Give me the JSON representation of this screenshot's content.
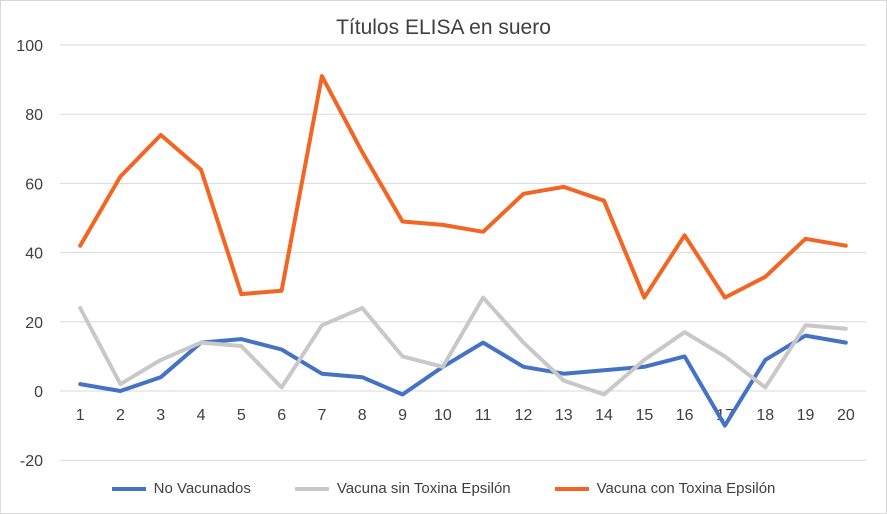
{
  "chart_data": {
    "type": "line",
    "title": "Títulos ELISA en suero",
    "xlabel": "",
    "ylabel": "",
    "categories": [
      "1",
      "2",
      "3",
      "4",
      "5",
      "6",
      "7",
      "8",
      "9",
      "10",
      "11",
      "12",
      "13",
      "14",
      "15",
      "16",
      "17",
      "18",
      "19",
      "20"
    ],
    "ylim": [
      -20,
      100
    ],
    "yticks": [
      "-20",
      "0",
      "20",
      "40",
      "60",
      "80",
      "100"
    ],
    "grid": true,
    "legend_position": "bottom",
    "series": [
      {
        "name": "No Vacunados",
        "color": "#4472c4",
        "values": [
          2,
          0,
          4,
          14,
          15,
          12,
          5,
          4,
          -1,
          7,
          14,
          7,
          5,
          6,
          7,
          10,
          -10,
          9,
          16,
          14
        ]
      },
      {
        "name": "Vacuna sin Toxina Epsilón",
        "color": "#c8c8c8",
        "values": [
          24,
          2,
          9,
          14,
          13,
          1,
          19,
          24,
          10,
          7,
          27,
          14,
          3,
          -1,
          9,
          17,
          10,
          1,
          19,
          18
        ]
      },
      {
        "name": "Vacuna con Toxina Epsilón",
        "color": "#f26522",
        "values": [
          42,
          62,
          74,
          64,
          28,
          29,
          91,
          69,
          49,
          48,
          46,
          57,
          59,
          55,
          27,
          45,
          27,
          33,
          44,
          42
        ]
      }
    ]
  }
}
